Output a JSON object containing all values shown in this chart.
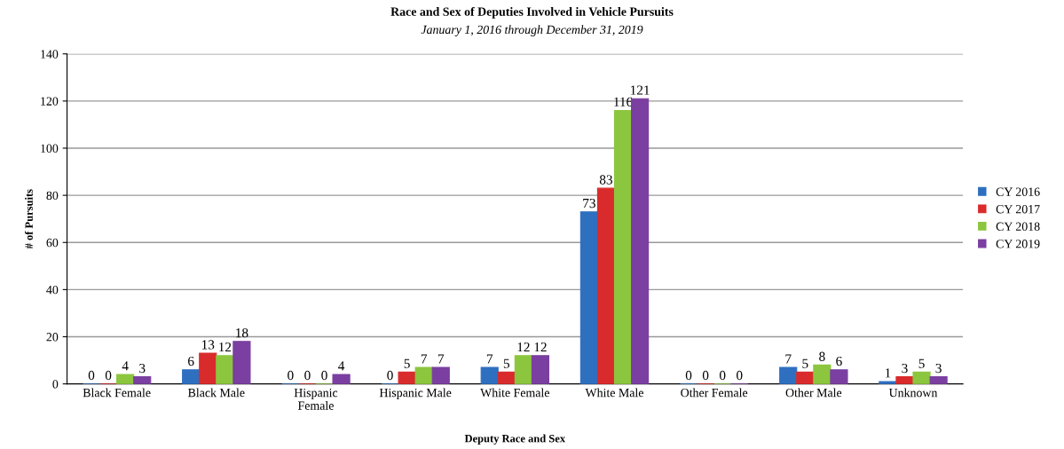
{
  "chart_data": {
    "type": "bar",
    "title": "Race and Sex of Deputies Involved in Vehicle Pursuits",
    "subtitle": "January 1, 2016 through December 31, 2019",
    "xlabel": "Deputy Race and Sex",
    "ylabel": "# of Pursuits",
    "categories": [
      "Black Female",
      "Black Male",
      "Hispanic\nFemale",
      "Hispanic Male",
      "White Female",
      "White Male",
      "Other Female",
      "Other Male",
      "Unknown"
    ],
    "series": [
      {
        "name": "CY 2016",
        "color": "#2e6fc0",
        "values": [
          0,
          6,
          0,
          0,
          7,
          73,
          0,
          7,
          1
        ]
      },
      {
        "name": "CY 2017",
        "color": "#d92b2b",
        "values": [
          0,
          13,
          0,
          5,
          5,
          83,
          0,
          5,
          3
        ]
      },
      {
        "name": "CY 2018",
        "color": "#8cc63f",
        "values": [
          4,
          12,
          0,
          7,
          12,
          116,
          0,
          8,
          5
        ]
      },
      {
        "name": "CY 2019",
        "color": "#7a3fa0",
        "values": [
          3,
          18,
          4,
          7,
          12,
          121,
          0,
          6,
          3
        ]
      }
    ],
    "ylim": [
      0,
      140
    ],
    "yticks": [
      0,
      20,
      40,
      60,
      80,
      100,
      120,
      140
    ],
    "grid": "y",
    "legend": "right",
    "data_labels": true
  }
}
